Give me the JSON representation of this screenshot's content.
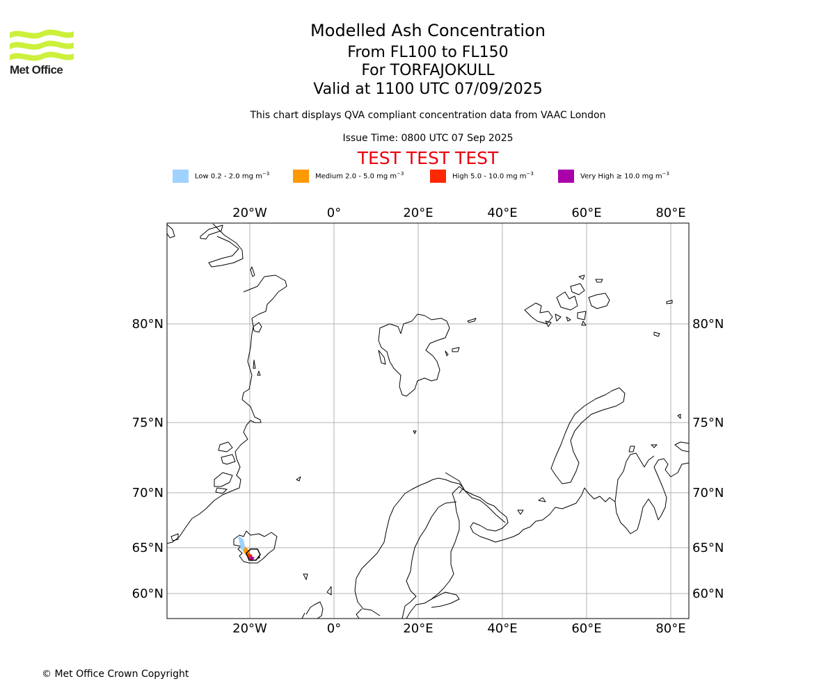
{
  "logo": {
    "text": "Met Office",
    "color": "#ccf03c"
  },
  "title": {
    "line1": "Modelled Ash Concentration",
    "line2": "From FL100 to FL150",
    "line3": "For TORFAJOKULL",
    "line4": "Valid at 1100 UTC 07/09/2025"
  },
  "subtitle": "This chart displays QVA compliant concentration data from VAAC London",
  "issue_time": "Issue Time: 0800 UTC 07 Sep 2025",
  "test_banner": "TEST TEST TEST",
  "legend": [
    {
      "label": "Low 0.2 - 2.0 mg m",
      "sup": "−3",
      "color": "#a0d2ff"
    },
    {
      "label": "Medium 2.0 - 5.0 mg m",
      "sup": "−3",
      "color": "#ff9900"
    },
    {
      "label": "High 5.0 - 10.0 mg m",
      "sup": "−3",
      "color": "#ff2800"
    },
    {
      "label": "Very High  ≥  10.0 mg m",
      "sup": "−3",
      "color": "#aa00aa"
    }
  ],
  "map": {
    "lon_labels": [
      "20°W",
      "0°",
      "20°E",
      "40°E",
      "60°E",
      "80°E"
    ],
    "lat_labels": [
      "80°N",
      "75°N",
      "70°N",
      "65°N",
      "60°N"
    ],
    "gridline_color": "#b0b0b0",
    "volcano": "TORFAJOKULL"
  },
  "copyright": "© Met Office Crown Copyright"
}
